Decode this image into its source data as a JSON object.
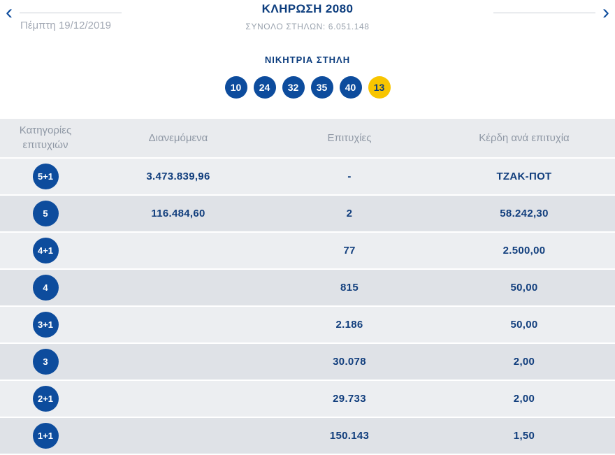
{
  "header": {
    "prev_arrow": "‹",
    "next_arrow": "›",
    "date": "Πέμπτη 19/12/2019",
    "title": "ΚΛΗΡΩΣΗ 2080",
    "subtitle": "ΣΥΝΟΛΟ ΣΤΗΛΩΝ: 6.051.148"
  },
  "winning": {
    "title": "ΝΙΚΗΤΡΙΑ ΣΤΗΛΗ",
    "numbers": [
      "10",
      "24",
      "32",
      "35",
      "40"
    ],
    "joker": "13"
  },
  "table": {
    "headers": [
      "Κατηγορίες επιτυχιών",
      "Διανεμόμενα",
      "Επιτυχίες",
      "Κέρδη ανά επιτυχία"
    ],
    "rows": [
      {
        "category": "5+1",
        "distributed": "3.473.839,96",
        "winners": "-",
        "prize": "ΤΖΑΚ-ΠΟΤ"
      },
      {
        "category": "5",
        "distributed": "116.484,60",
        "winners": "2",
        "prize": "58.242,30"
      },
      {
        "category": "4+1",
        "distributed": "",
        "winners": "77",
        "prize": "2.500,00"
      },
      {
        "category": "4",
        "distributed": "",
        "winners": "815",
        "prize": "50,00"
      },
      {
        "category": "3+1",
        "distributed": "",
        "winners": "2.186",
        "prize": "50,00"
      },
      {
        "category": "3",
        "distributed": "",
        "winners": "30.078",
        "prize": "2,00"
      },
      {
        "category": "2+1",
        "distributed": "",
        "winners": "29.733",
        "prize": "2,00"
      },
      {
        "category": "1+1",
        "distributed": "",
        "winners": "150.143",
        "prize": "1,50"
      }
    ]
  },
  "colors": {
    "brand_blue": "#0d4c9d",
    "dark_blue_text": "#113e7d",
    "joker_yellow": "#f8c500",
    "gray_text": "#8f98a5",
    "row_light": "#eceef1",
    "row_dark": "#dfe2e7"
  }
}
